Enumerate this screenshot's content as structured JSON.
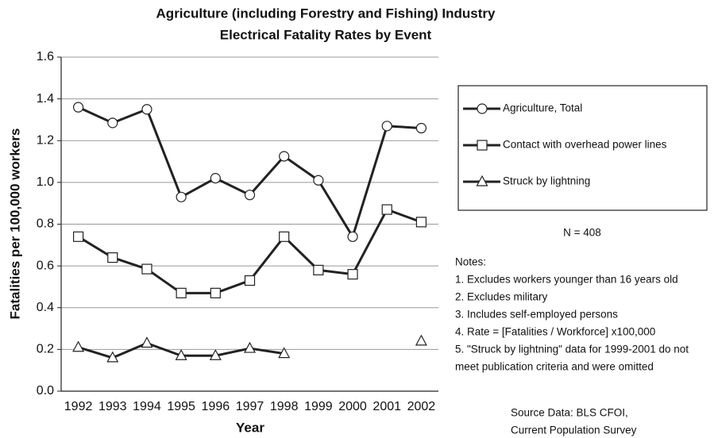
{
  "chart_data": {
    "type": "line",
    "title": [
      "Agriculture (including Forestry and Fishing) Industry",
      "Electrical Fatality Rates by Event"
    ],
    "x_label": "Year",
    "y_label": "Fatalities per 100,000 workers",
    "categories": [
      "1992",
      "1993",
      "1994",
      "1995",
      "1996",
      "1997",
      "1998",
      "1999",
      "2000",
      "2001",
      "2002"
    ],
    "series": [
      {
        "name": "Agriculture, Total",
        "color": "#222222",
        "marker": "circle",
        "values": [
          1.36,
          1.285,
          1.35,
          0.93,
          1.02,
          0.94,
          1.125,
          1.01,
          0.74,
          1.27,
          1.26
        ]
      },
      {
        "name": "Contact with overhead power lines",
        "color": "#222222",
        "marker": "square",
        "values": [
          0.74,
          0.64,
          0.585,
          0.47,
          0.47,
          0.53,
          0.74,
          0.58,
          0.56,
          0.87,
          0.81
        ]
      },
      {
        "name": "Struck by lightning",
        "color": "#222222",
        "marker": "triangle",
        "values": [
          0.21,
          0.16,
          0.23,
          0.17,
          0.17,
          0.205,
          0.18,
          null,
          null,
          null,
          0.24
        ]
      }
    ],
    "ylim": [
      0,
      1.6
    ],
    "yticks": [
      {
        "value": 0,
        "label": "0.0"
      },
      0.2,
      0.4,
      0.6,
      0.8,
      {
        "value": 1,
        "label": "1.0"
      },
      1.2,
      1.4,
      1.6
    ],
    "grid": true,
    "legend": "right",
    "annotation": "N = 408",
    "notes": [
      "Notes:",
      "1.  Excludes workers younger than 16 years old",
      "2.  Excludes military",
      "3.  Includes self-employed persons",
      "4.  Rate = [Fatalities / Workforce] x100,000",
      "5.  \"Struck by lightning\" data for 1999-2001 do not",
      "meet publication criteria and were omitted"
    ],
    "source": [
      "Source Data: BLS CFOI,",
      "Current Population Survey"
    ]
  }
}
